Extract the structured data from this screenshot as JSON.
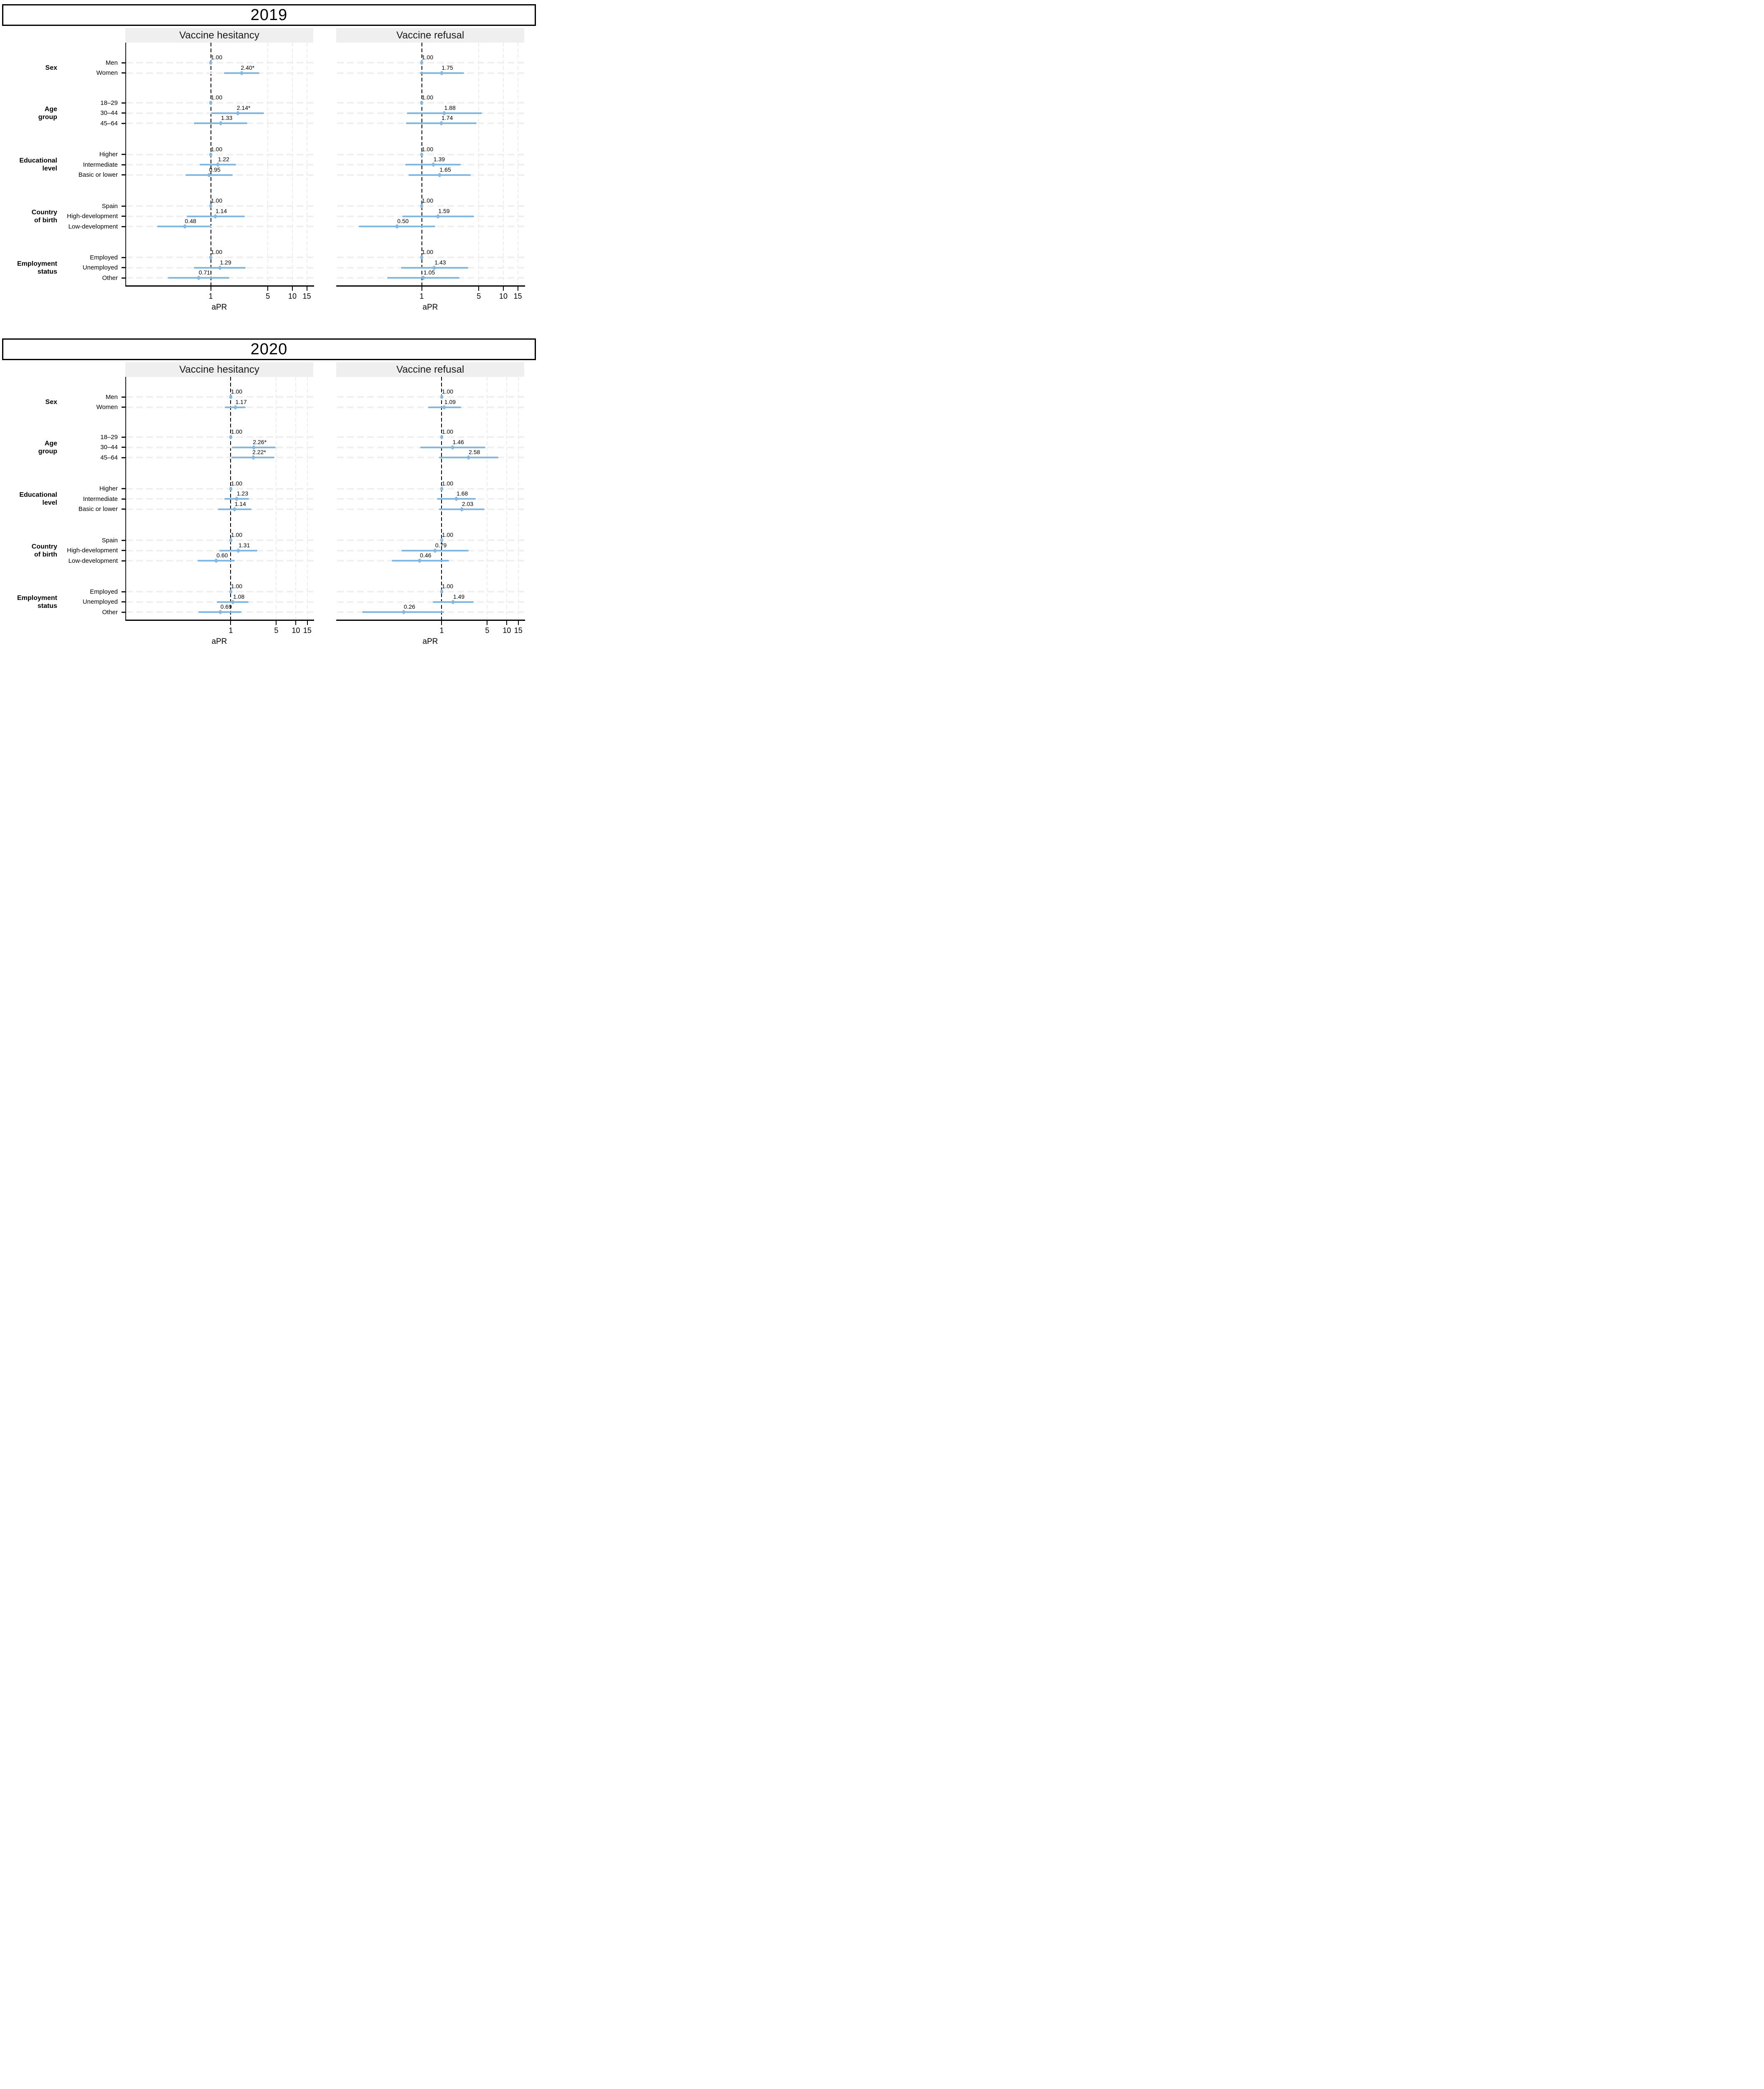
{
  "chart_data": {
    "type": "scatter",
    "subtype": "forest-plot",
    "note": "Adjusted prevalence ratios (points, labelled) with 95% confidence-interval bars; CI bounds estimated from plot. * marks significant estimates.",
    "xlabel": "aPR",
    "x_scale": "log10",
    "x_ticks": [
      1,
      5,
      10,
      15
    ],
    "reference_value": 1,
    "outcome_columns": [
      "Vaccine hesitancy",
      "Vaccine refusal"
    ],
    "colors": {
      "point": "#85b8e1",
      "ci_bar": "#85b8e1",
      "reference_line": "#000000",
      "vertical_grid": "#ececec",
      "row_guide": "#f0f0f0",
      "strip_background": "#efefef",
      "text": "#000000"
    },
    "years": [
      {
        "year": "2019",
        "x_domain": [
          0.09,
          18
        ],
        "groups": [
          {
            "label": "Sex",
            "label_lines": [
              "Sex"
            ],
            "rows": [
              {
                "category": "Men",
                "hesitancy": {
                  "value": 1.0,
                  "label": "1.00",
                  "reference": true
                },
                "refusal": {
                  "value": 1.0,
                  "label": "1.00",
                  "reference": true
                }
              },
              {
                "category": "Women",
                "hesitancy": {
                  "value": 2.4,
                  "label": "2.40*",
                  "ci_low": 1.45,
                  "ci_high": 3.95
                },
                "refusal": {
                  "value": 1.75,
                  "label": "1.75",
                  "ci_low": 0.95,
                  "ci_high": 3.3
                }
              }
            ]
          },
          {
            "label": "Age group",
            "label_lines": [
              "Age",
              "group"
            ],
            "rows": [
              {
                "category": "18–29",
                "hesitancy": {
                  "value": 1.0,
                  "label": "1.00",
                  "reference": true
                },
                "refusal": {
                  "value": 1.0,
                  "label": "1.00",
                  "reference": true
                }
              },
              {
                "category": "30–44",
                "hesitancy": {
                  "value": 2.14,
                  "label": "2.14*",
                  "ci_low": 1.01,
                  "ci_high": 4.5
                },
                "refusal": {
                  "value": 1.88,
                  "label": "1.88",
                  "ci_low": 0.66,
                  "ci_high": 5.5
                }
              },
              {
                "category": "45–64",
                "hesitancy": {
                  "value": 1.33,
                  "label": "1.33",
                  "ci_low": 0.62,
                  "ci_high": 2.8
                },
                "refusal": {
                  "value": 1.74,
                  "label": "1.74",
                  "ci_low": 0.64,
                  "ci_high": 4.7
                }
              }
            ]
          },
          {
            "label": "Educational level",
            "label_lines": [
              "Educational",
              "level"
            ],
            "rows": [
              {
                "category": "Higher",
                "hesitancy": {
                  "value": 1.0,
                  "label": "1.00",
                  "reference": true
                },
                "refusal": {
                  "value": 1.0,
                  "label": "1.00",
                  "reference": true
                }
              },
              {
                "category": "Intermediate",
                "hesitancy": {
                  "value": 1.22,
                  "label": "1.22",
                  "ci_low": 0.73,
                  "ci_high": 2.05
                },
                "refusal": {
                  "value": 1.39,
                  "label": "1.39",
                  "ci_low": 0.63,
                  "ci_high": 3.0
                }
              },
              {
                "category": "Basic or lower",
                "hesitancy": {
                  "value": 0.95,
                  "label": "0.95",
                  "ci_low": 0.49,
                  "ci_high": 1.86
                },
                "refusal": {
                  "value": 1.65,
                  "label": "1.65",
                  "ci_low": 0.69,
                  "ci_high": 4.0
                }
              }
            ]
          },
          {
            "label": "Country of birth",
            "label_lines": [
              "Country",
              "of birth"
            ],
            "rows": [
              {
                "category": "Spain",
                "hesitancy": {
                  "value": 1.0,
                  "label": "1.00",
                  "reference": true
                },
                "refusal": {
                  "value": 1.0,
                  "label": "1.00",
                  "reference": true
                }
              },
              {
                "category": "High-development",
                "hesitancy": {
                  "value": 1.14,
                  "label": "1.14",
                  "ci_low": 0.51,
                  "ci_high": 2.6
                },
                "refusal": {
                  "value": 1.59,
                  "label": "1.59",
                  "ci_low": 0.58,
                  "ci_high": 4.4
                }
              },
              {
                "category": "Low-development",
                "hesitancy": {
                  "value": 0.48,
                  "label": "0.48",
                  "ci_low": 0.22,
                  "ci_high": 1.01
                },
                "refusal": {
                  "value": 0.5,
                  "label": "0.50",
                  "ci_low": 0.17,
                  "ci_high": 1.46
                }
              }
            ]
          },
          {
            "label": "Employment status",
            "label_lines": [
              "Employment",
              "status"
            ],
            "rows": [
              {
                "category": "Employed",
                "hesitancy": {
                  "value": 1.0,
                  "label": "1.00",
                  "reference": true
                },
                "refusal": {
                  "value": 1.0,
                  "label": "1.00",
                  "reference": true
                }
              },
              {
                "category": "Unemployed",
                "hesitancy": {
                  "value": 1.29,
                  "label": "1.29",
                  "ci_low": 0.62,
                  "ci_high": 2.67
                },
                "refusal": {
                  "value": 1.43,
                  "label": "1.43",
                  "ci_low": 0.56,
                  "ci_high": 3.7
                }
              },
              {
                "category": "Other",
                "hesitancy": {
                  "value": 0.71,
                  "label": "0.71",
                  "ci_low": 0.3,
                  "ci_high": 1.69
                },
                "refusal": {
                  "value": 1.05,
                  "label": "1.05",
                  "ci_low": 0.38,
                  "ci_high": 2.9
                }
              }
            ]
          }
        ]
      },
      {
        "year": "2020",
        "x_domain": [
          0.024,
          18.5
        ],
        "groups": [
          {
            "label": "Sex",
            "label_lines": [
              "Sex"
            ],
            "rows": [
              {
                "category": "Men",
                "hesitancy": {
                  "value": 1.0,
                  "label": "1.00",
                  "reference": true
                },
                "refusal": {
                  "value": 1.0,
                  "label": "1.00",
                  "reference": true
                }
              },
              {
                "category": "Women",
                "hesitancy": {
                  "value": 1.17,
                  "label": "1.17",
                  "ci_low": 0.81,
                  "ci_high": 1.7
                },
                "refusal": {
                  "value": 1.09,
                  "label": "1.09",
                  "ci_low": 0.62,
                  "ci_high": 2.0
                }
              }
            ]
          },
          {
            "label": "Age group",
            "label_lines": [
              "Age",
              "group"
            ],
            "rows": [
              {
                "category": "18–29",
                "hesitancy": {
                  "value": 1.0,
                  "label": "1.00",
                  "reference": true
                },
                "refusal": {
                  "value": 1.0,
                  "label": "1.00",
                  "reference": true
                }
              },
              {
                "category": "30–44",
                "hesitancy": {
                  "value": 2.26,
                  "label": "2.26*",
                  "ci_low": 1.04,
                  "ci_high": 4.9
                },
                "refusal": {
                  "value": 1.46,
                  "label": "1.46",
                  "ci_low": 0.47,
                  "ci_high": 4.7
                }
              },
              {
                "category": "45–64",
                "hesitancy": {
                  "value": 2.22,
                  "label": "2.22*",
                  "ci_low": 1.03,
                  "ci_high": 4.7
                },
                "refusal": {
                  "value": 2.58,
                  "label": "2.58",
                  "ci_low": 0.91,
                  "ci_high": 7.4
                }
              }
            ]
          },
          {
            "label": "Educational level",
            "label_lines": [
              "Educational",
              "level"
            ],
            "rows": [
              {
                "category": "Higher",
                "hesitancy": {
                  "value": 1.0,
                  "label": "1.00",
                  "reference": true
                },
                "refusal": {
                  "value": 1.0,
                  "label": "1.00",
                  "reference": true
                }
              },
              {
                "category": "Intermediate",
                "hesitancy": {
                  "value": 1.23,
                  "label": "1.23",
                  "ci_low": 0.8,
                  "ci_high": 1.9
                },
                "refusal": {
                  "value": 1.68,
                  "label": "1.68",
                  "ci_low": 0.84,
                  "ci_high": 3.35
                }
              },
              {
                "category": "Basic or lower",
                "hesitancy": {
                  "value": 1.14,
                  "label": "1.14",
                  "ci_low": 0.64,
                  "ci_high": 2.07
                },
                "refusal": {
                  "value": 2.03,
                  "label": "2.03",
                  "ci_low": 0.91,
                  "ci_high": 4.55
                }
              }
            ]
          },
          {
            "label": "Country of birth",
            "label_lines": [
              "Country",
              "of birth"
            ],
            "rows": [
              {
                "category": "Spain",
                "hesitancy": {
                  "value": 1.0,
                  "label": "1.00",
                  "reference": true
                },
                "refusal": {
                  "value": 1.0,
                  "label": "1.00",
                  "reference": true
                }
              },
              {
                "category": "High-development",
                "hesitancy": {
                  "value": 1.31,
                  "label": "1.31",
                  "ci_low": 0.67,
                  "ci_high": 2.55
                },
                "refusal": {
                  "value": 0.79,
                  "label": "0.79",
                  "ci_low": 0.24,
                  "ci_high": 2.6
                }
              },
              {
                "category": "Low-development",
                "hesitancy": {
                  "value": 0.6,
                  "label": "0.60",
                  "ci_low": 0.31,
                  "ci_high": 1.15
                },
                "refusal": {
                  "value": 0.46,
                  "label": "0.46",
                  "ci_low": 0.17,
                  "ci_high": 1.3
                }
              }
            ]
          },
          {
            "label": "Employment status",
            "label_lines": [
              "Employment",
              "status"
            ],
            "rows": [
              {
                "category": "Employed",
                "hesitancy": {
                  "value": 1.0,
                  "label": "1.00",
                  "reference": true
                },
                "refusal": {
                  "value": 1.0,
                  "label": "1.00",
                  "reference": true
                }
              },
              {
                "category": "Unemployed",
                "hesitancy": {
                  "value": 1.08,
                  "label": "1.08",
                  "ci_low": 0.61,
                  "ci_high": 1.88
                },
                "refusal": {
                  "value": 1.49,
                  "label": "1.49",
                  "ci_low": 0.73,
                  "ci_high": 3.1
                }
              },
              {
                "category": "Other",
                "hesitancy": {
                  "value": 0.69,
                  "label": "0.69",
                  "ci_low": 0.32,
                  "ci_high": 1.45
                },
                "refusal": {
                  "value": 0.26,
                  "label": "0.26",
                  "ci_low": 0.06,
                  "ci_high": 1.08
                }
              }
            ]
          }
        ]
      }
    ]
  }
}
